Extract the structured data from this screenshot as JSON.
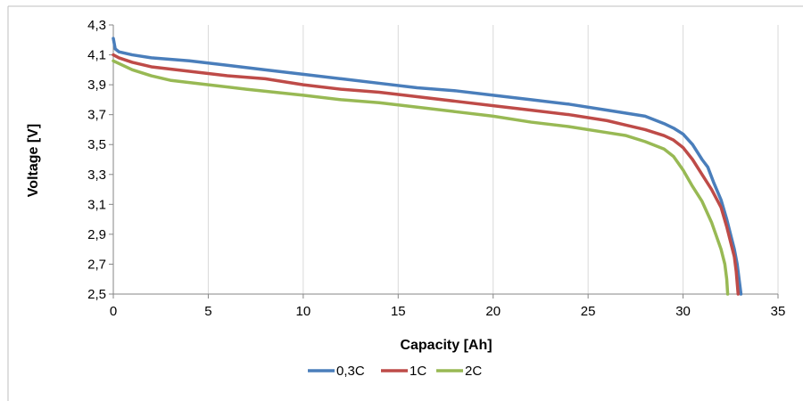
{
  "chart_data": {
    "type": "line",
    "title": "",
    "xlabel": "Capacity [Ah]",
    "ylabel": "Voltage [V]",
    "xlim": [
      0,
      35
    ],
    "ylim": [
      2.5,
      4.3
    ],
    "x_ticks": [
      0,
      5,
      10,
      15,
      20,
      25,
      30,
      35
    ],
    "x_tick_labels": [
      "0",
      "5",
      "10",
      "15",
      "20",
      "25",
      "30",
      "35"
    ],
    "y_ticks": [
      2.5,
      2.7,
      2.9,
      3.1,
      3.3,
      3.5,
      3.7,
      3.9,
      4.1,
      4.3
    ],
    "y_tick_labels": [
      "2,5",
      "2,7",
      "2,9",
      "3,1",
      "3,3",
      "3,5",
      "3,7",
      "3,9",
      "4,1",
      "4,3"
    ],
    "grid": "vertical",
    "legend_position": "bottom",
    "series": [
      {
        "name": "0,3C",
        "color": "#4a7ebb",
        "points": [
          [
            0,
            4.21
          ],
          [
            0.1,
            4.14
          ],
          [
            0.3,
            4.12
          ],
          [
            1,
            4.1
          ],
          [
            2,
            4.08
          ],
          [
            4,
            4.06
          ],
          [
            6,
            4.03
          ],
          [
            8,
            4.0
          ],
          [
            10,
            3.97
          ],
          [
            12,
            3.94
          ],
          [
            14,
            3.91
          ],
          [
            16,
            3.88
          ],
          [
            18,
            3.86
          ],
          [
            20,
            3.83
          ],
          [
            22,
            3.8
          ],
          [
            24,
            3.77
          ],
          [
            26,
            3.73
          ],
          [
            27,
            3.71
          ],
          [
            28,
            3.69
          ],
          [
            29,
            3.64
          ],
          [
            29.5,
            3.61
          ],
          [
            30,
            3.57
          ],
          [
            30.5,
            3.5
          ],
          [
            31,
            3.4
          ],
          [
            31.3,
            3.35
          ],
          [
            31.6,
            3.25
          ],
          [
            32,
            3.13
          ],
          [
            32.3,
            3.0
          ],
          [
            32.5,
            2.9
          ],
          [
            32.7,
            2.8
          ],
          [
            32.85,
            2.7
          ],
          [
            32.95,
            2.6
          ],
          [
            33.05,
            2.5
          ]
        ]
      },
      {
        "name": "1C",
        "color": "#be4b48",
        "points": [
          [
            0,
            4.1
          ],
          [
            0.3,
            4.08
          ],
          [
            1,
            4.05
          ],
          [
            2,
            4.02
          ],
          [
            4,
            3.99
          ],
          [
            6,
            3.96
          ],
          [
            8,
            3.94
          ],
          [
            10,
            3.9
          ],
          [
            12,
            3.87
          ],
          [
            14,
            3.85
          ],
          [
            16,
            3.82
          ],
          [
            18,
            3.79
          ],
          [
            20,
            3.76
          ],
          [
            22,
            3.73
          ],
          [
            24,
            3.7
          ],
          [
            26,
            3.66
          ],
          [
            27,
            3.63
          ],
          [
            28,
            3.6
          ],
          [
            29,
            3.56
          ],
          [
            29.5,
            3.53
          ],
          [
            30,
            3.48
          ],
          [
            30.5,
            3.4
          ],
          [
            31,
            3.3
          ],
          [
            31.5,
            3.2
          ],
          [
            32,
            3.08
          ],
          [
            32.3,
            2.95
          ],
          [
            32.5,
            2.85
          ],
          [
            32.7,
            2.75
          ],
          [
            32.8,
            2.65
          ],
          [
            32.9,
            2.5
          ]
        ]
      },
      {
        "name": "2C",
        "color": "#98b954",
        "points": [
          [
            0,
            4.06
          ],
          [
            0.5,
            4.03
          ],
          [
            1,
            4.0
          ],
          [
            2,
            3.96
          ],
          [
            3,
            3.93
          ],
          [
            5,
            3.9
          ],
          [
            7,
            3.87
          ],
          [
            10,
            3.83
          ],
          [
            12,
            3.8
          ],
          [
            14,
            3.78
          ],
          [
            16,
            3.75
          ],
          [
            18,
            3.72
          ],
          [
            20,
            3.69
          ],
          [
            22,
            3.65
          ],
          [
            24,
            3.62
          ],
          [
            26,
            3.58
          ],
          [
            27,
            3.56
          ],
          [
            28,
            3.52
          ],
          [
            29,
            3.47
          ],
          [
            29.5,
            3.42
          ],
          [
            30,
            3.33
          ],
          [
            30.5,
            3.22
          ],
          [
            31,
            3.12
          ],
          [
            31.5,
            2.98
          ],
          [
            32,
            2.8
          ],
          [
            32.2,
            2.7
          ],
          [
            32.3,
            2.6
          ],
          [
            32.35,
            2.5
          ]
        ]
      }
    ]
  }
}
